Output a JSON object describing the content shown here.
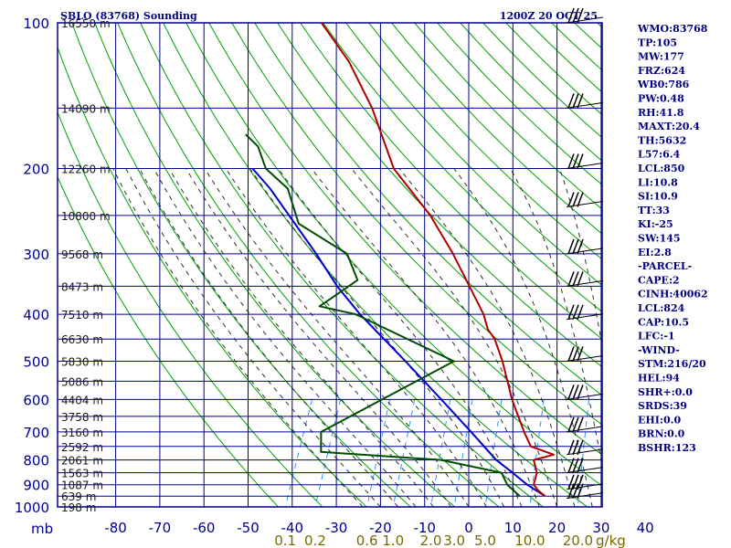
{
  "header": {
    "station": "SBLO (83768) Sounding",
    "time": "1200Z 20 OCT 25"
  },
  "chart_data": {
    "type": "skew-t",
    "pressure_unit_label": "mb",
    "pressure_ticks": [
      100,
      200,
      300,
      400,
      500,
      600,
      700,
      800,
      900,
      1000
    ],
    "temperature_ticks": [
      -80,
      -70,
      -60,
      -50,
      -40,
      -30,
      -20,
      -10,
      0,
      10,
      20,
      30,
      40
    ],
    "mixing_ratio_ticks": [
      {
        "label": "0.1",
        "value": 0.1
      },
      {
        "label": "0.2",
        "value": 0.2
      },
      {
        "label": "0.6",
        "value": 0.6
      },
      {
        "label": "1.0",
        "value": 1.0
      },
      {
        "label": "2.0",
        "value": 2.0
      },
      {
        "label": "3.0",
        "value": 3.0
      },
      {
        "label": "5.0",
        "value": 5.0
      },
      {
        "label": "10.0",
        "value": 10.0
      },
      {
        "label": "20.0",
        "value": 20.0
      }
    ],
    "mixing_ratio_unit": "g/kg",
    "height_labels": [
      {
        "p": 100,
        "label": "16550 m"
      },
      {
        "p": 150,
        "label": "14090 m"
      },
      {
        "p": 200,
        "label": "12260 m"
      },
      {
        "p": 250,
        "label": "10800 m"
      },
      {
        "p": 300,
        "label": "9568 m"
      },
      {
        "p": 350,
        "label": "8473 m"
      },
      {
        "p": 400,
        "label": "7510 m"
      },
      {
        "p": 450,
        "label": "6630 m"
      },
      {
        "p": 500,
        "label": "5830 m"
      },
      {
        "p": 550,
        "label": "5086 m"
      },
      {
        "p": 600,
        "label": "4404 m"
      },
      {
        "p": 650,
        "label": "3758 m"
      },
      {
        "p": 700,
        "label": "3160 m"
      },
      {
        "p": 750,
        "label": "2592 m"
      },
      {
        "p": 800,
        "label": "2061 m"
      },
      {
        "p": 850,
        "label": "1563 m"
      },
      {
        "p": 900,
        "label": "1087 m"
      },
      {
        "p": 950,
        "label": "639 m"
      },
      {
        "p": 1000,
        "label": "198 m"
      }
    ],
    "temperature_profile": [
      {
        "p": 950,
        "t": 16.2
      },
      {
        "p": 925,
        "t": 14.1
      },
      {
        "p": 900,
        "t": 12.5
      },
      {
        "p": 850,
        "t": 12.0
      },
      {
        "p": 800,
        "t": 10.0
      },
      {
        "p": 780,
        "t": 14.0
      },
      {
        "p": 750,
        "t": 8.0
      },
      {
        "p": 700,
        "t": 5.0
      },
      {
        "p": 600,
        "t": -1.0
      },
      {
        "p": 500,
        "t": -7.0
      },
      {
        "p": 450,
        "t": -11.0
      },
      {
        "p": 430,
        "t": -13.5
      },
      {
        "p": 400,
        "t": -16.0
      },
      {
        "p": 300,
        "t": -29.0
      },
      {
        "p": 250,
        "t": -38.0
      },
      {
        "p": 200,
        "t": -51.0
      },
      {
        "p": 150,
        "t": -62.0
      },
      {
        "p": 120,
        "t": -72.0
      },
      {
        "p": 100,
        "t": -82.0
      }
    ],
    "dewpoint_profile": [
      {
        "p": 950,
        "t": 10.5
      },
      {
        "p": 900,
        "t": 6.5
      },
      {
        "p": 850,
        "t": 4.0
      },
      {
        "p": 800,
        "t": -11.0
      },
      {
        "p": 770,
        "t": -39.0
      },
      {
        "p": 700,
        "t": -41.0
      },
      {
        "p": 500,
        "t": -18.0
      },
      {
        "p": 400,
        "t": -45.0
      },
      {
        "p": 385,
        "t": -54.0
      },
      {
        "p": 370,
        "t": -52.0
      },
      {
        "p": 340,
        "t": -48.0
      },
      {
        "p": 300,
        "t": -53.0
      },
      {
        "p": 260,
        "t": -67.0
      },
      {
        "p": 220,
        "t": -73.0
      },
      {
        "p": 200,
        "t": -80.0
      },
      {
        "p": 180,
        "t": -84.0
      },
      {
        "p": 170,
        "t": -88.0
      }
    ],
    "parcel_profile": [
      {
        "p": 950,
        "t": 16.2
      },
      {
        "p": 900,
        "t": 11.0
      },
      {
        "p": 850,
        "t": 6.5
      },
      {
        "p": 800,
        "t": 1.5
      },
      {
        "p": 700,
        "t": -7.0
      },
      {
        "p": 600,
        "t": -17.0
      },
      {
        "p": 500,
        "t": -29.0
      },
      {
        "p": 400,
        "t": -44.0
      },
      {
        "p": 350,
        "t": -52.0
      },
      {
        "p": 300,
        "t": -60.0
      },
      {
        "p": 250,
        "t": -70.0
      },
      {
        "p": 220,
        "t": -77.0
      },
      {
        "p": 200,
        "t": -83.0
      }
    ],
    "wind_barbs": [
      {
        "p": 100
      },
      {
        "p": 150
      },
      {
        "p": 200
      },
      {
        "p": 240
      },
      {
        "p": 300
      },
      {
        "p": 350
      },
      {
        "p": 410
      },
      {
        "p": 500
      },
      {
        "p": 600
      },
      {
        "p": 700
      },
      {
        "p": 780
      },
      {
        "p": 850
      },
      {
        "p": 920
      },
      {
        "p": 960
      }
    ],
    "grid": true
  },
  "indices": [
    "WMO:83768",
    "TP:105",
    "MW:177",
    "FRZ:624",
    "WB0:786",
    "PW:0.48",
    "RH:41.8",
    "MAXT:20.4",
    "TH:5632",
    "L57:6.4",
    "LCL:850",
    "LI:10.8",
    "SI:10.9",
    "TT:33",
    "KI:-25",
    "SW:145",
    "EI:2.8",
    "-PARCEL-",
    "CAPE:2",
    "CINH:40062",
    "LCL:824",
    "CAP:10.5",
    "LFC:-1",
    "-WIND-",
    "STM:216/20",
    "HEL:94",
    "SHR+:0.0",
    "SRDS:39",
    "EHI:0.0",
    "BRN:0.0",
    "BSHR:123"
  ],
  "colors": {
    "grid": "#00008b",
    "dry_adiabat": "#00a000",
    "moist_adiabat": "#303030",
    "mixing_ratio": "#3090ff",
    "temperature": "#b00000",
    "dewpoint": "#004d00",
    "parcel": "#0000cc",
    "barb": "#000000"
  }
}
